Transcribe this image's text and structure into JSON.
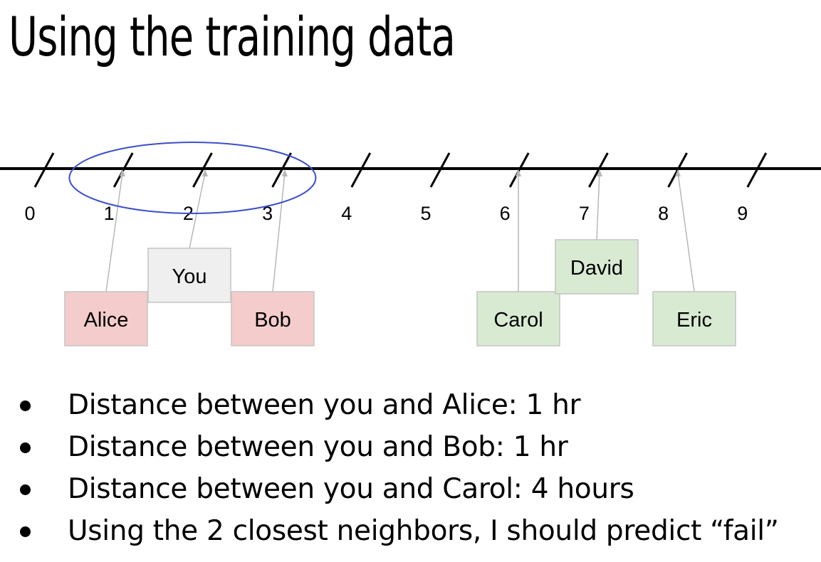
{
  "title": "Using the training data",
  "number_line": {
    "ticks": [
      "0",
      "1",
      "2",
      "3",
      "4",
      "5",
      "6",
      "7",
      "8",
      "9"
    ]
  },
  "points": [
    {
      "label": "Alice",
      "position": 1,
      "class": "fail",
      "fill": "#f4cccc"
    },
    {
      "label": "You",
      "position": 2,
      "class": "query",
      "fill": "#efefef"
    },
    {
      "label": "Bob",
      "position": 3,
      "class": "fail",
      "fill": "#f4cccc"
    },
    {
      "label": "Carol",
      "position": 6,
      "class": "pass",
      "fill": "#d9ead3"
    },
    {
      "label": "David",
      "position": 7,
      "class": "pass",
      "fill": "#d9ead3"
    },
    {
      "label": "Eric",
      "position": 8,
      "class": "pass",
      "fill": "#d9ead3"
    }
  ],
  "neighborhood": {
    "from": 1,
    "to": 3,
    "stroke": "#3c4fc9"
  },
  "bullets": [
    "Distance between you and Alice: 1 hr",
    "Distance between you and Bob: 1 hr",
    "Distance between you and Carol: 4 hours",
    "Using the 2 closest neighbors, I should predict “fail”"
  ]
}
